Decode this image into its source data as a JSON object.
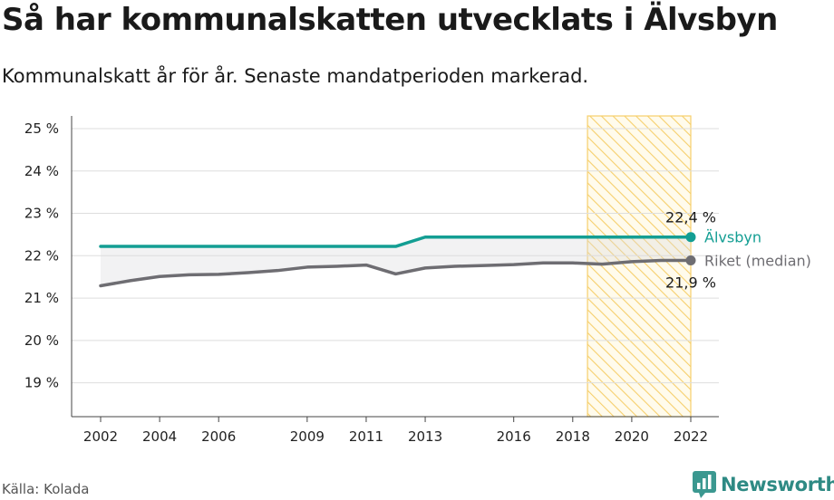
{
  "header": {
    "title": "Så har kommunalskatten utvecklats i Älvsbyn",
    "subtitle": "Kommunalskatt år för år. Senaste mandatperioden markerad."
  },
  "footer": {
    "source": "Källa: Kolada",
    "brand": "Newsworthy"
  },
  "chart_data": {
    "type": "line",
    "title": "Så har kommunalskatten utvecklats i Älvsbyn",
    "subtitle": "Kommunalskatt år för år. Senaste mandatperioden markerad.",
    "xlabel": "",
    "ylabel": "",
    "x": [
      2002,
      2003,
      2004,
      2005,
      2006,
      2007,
      2008,
      2009,
      2010,
      2011,
      2012,
      2013,
      2014,
      2015,
      2016,
      2017,
      2018,
      2019,
      2020,
      2021,
      2022
    ],
    "xticks": [
      2002,
      2004,
      2006,
      2009,
      2011,
      2013,
      2016,
      2018,
      2020,
      2022
    ],
    "xtick_labels": [
      "2002",
      "2004",
      "2006",
      "2009",
      "2011",
      "2013",
      "2016",
      "2018",
      "2020",
      "2022"
    ],
    "ylim": [
      18.2,
      25.3
    ],
    "yticks": [
      19,
      20,
      21,
      22,
      23,
      24,
      25
    ],
    "ytick_labels": [
      "19 %",
      "20 %",
      "21 %",
      "22 %",
      "23 %",
      "24 %",
      "25 %"
    ],
    "grid": true,
    "highlight_period": [
      2018.5,
      2022
    ],
    "series": [
      {
        "name": "Älvsbyn",
        "color": "#139e93",
        "values": [
          22.22,
          22.22,
          22.22,
          22.22,
          22.22,
          22.22,
          22.22,
          22.22,
          22.22,
          22.22,
          22.22,
          22.44,
          22.44,
          22.44,
          22.44,
          22.44,
          22.44,
          22.44,
          22.44,
          22.44,
          22.44
        ],
        "end_value_label": "22,4 %"
      },
      {
        "name": "Riket (median)",
        "color": "#6e6d72",
        "values": [
          21.29,
          21.41,
          21.51,
          21.55,
          21.56,
          21.6,
          21.65,
          21.73,
          21.75,
          21.78,
          21.57,
          21.71,
          21.75,
          21.77,
          21.79,
          21.83,
          21.83,
          21.8,
          21.86,
          21.89,
          21.89
        ],
        "end_value_label": "21,9 %"
      }
    ]
  }
}
